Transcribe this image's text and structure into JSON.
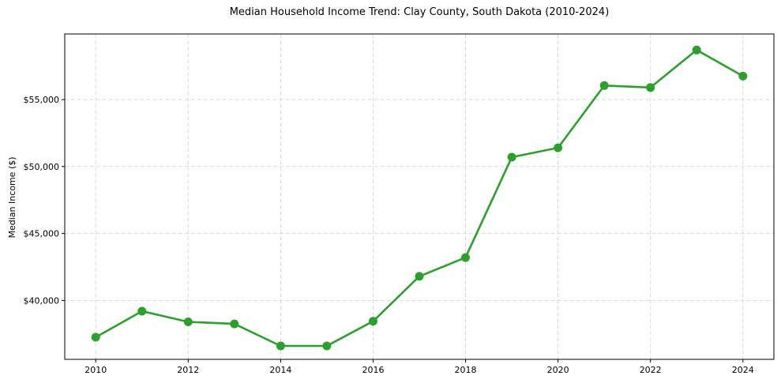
{
  "chart_data": {
    "type": "line",
    "title": "Median Household Income Trend: Clay County, South Dakota (2010-2024)",
    "xlabel": "",
    "ylabel": "Median Income ($)",
    "x": [
      2010,
      2011,
      2012,
      2013,
      2014,
      2015,
      2016,
      2017,
      2018,
      2019,
      2020,
      2021,
      2022,
      2023,
      2024
    ],
    "y": [
      37250,
      39200,
      38400,
      38250,
      36600,
      36600,
      38450,
      41800,
      43200,
      50700,
      51400,
      56050,
      55900,
      58700,
      56750
    ],
    "xlim": [
      2009.33,
      2024.67
    ],
    "ylim": [
      35600,
      59900
    ],
    "x_ticks": [
      {
        "value": 2010,
        "label": "2010"
      },
      {
        "value": 2012,
        "label": "2012"
      },
      {
        "value": 2014,
        "label": "2014"
      },
      {
        "value": 2016,
        "label": "2016"
      },
      {
        "value": 2018,
        "label": "2018"
      },
      {
        "value": 2020,
        "label": "2020"
      },
      {
        "value": 2022,
        "label": "2022"
      },
      {
        "value": 2024,
        "label": "2024"
      }
    ],
    "y_ticks": [
      {
        "value": 40000,
        "label": "$40,000"
      },
      {
        "value": 45000,
        "label": "$45,000"
      },
      {
        "value": 50000,
        "label": "$50,000"
      },
      {
        "value": 55000,
        "label": "$55,000"
      }
    ],
    "grid": true,
    "grid_style": "dashed",
    "legend_position": "none",
    "line_color": "#2ca02c",
    "marker": "circle",
    "marker_color": "#2ca02c",
    "grid_color": "#d6d6d6",
    "spine_color": "#000000",
    "text_color": "#000000"
  }
}
